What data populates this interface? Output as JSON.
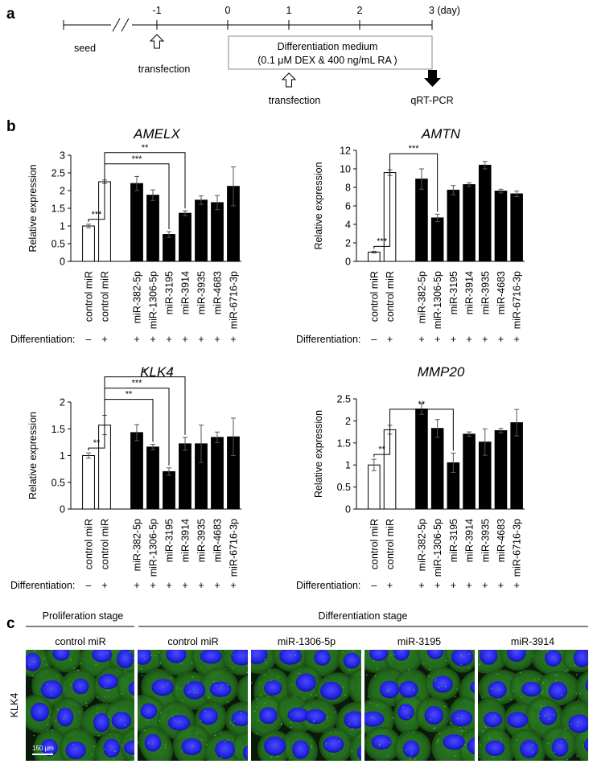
{
  "panel_a": {
    "label": "a",
    "ticks": [
      "-1",
      "0",
      "1",
      "2",
      "3 (day)"
    ],
    "seed": "seed",
    "transfection_1": "transfection",
    "transfection_2": "transfection",
    "medium_line1": "Differentiation medium",
    "medium_line2": "(0.1 μM DEX & 400 ng/mL RA )",
    "qrtpcr": "qRT-PCR"
  },
  "panel_b": {
    "label": "b"
  },
  "categories": [
    "control miR",
    "control miR",
    "miR-382-5p",
    "miR-1306-5p",
    "miR-3195",
    "miR-3914",
    "miR-3935",
    "miR-4683",
    "miR-6716-3p"
  ],
  "differentiation": {
    "label": "Differentiation:",
    "signs": [
      "–",
      "+",
      "+",
      "+",
      "+",
      "+",
      "+",
      "+",
      "+"
    ]
  },
  "chart_data": [
    {
      "type": "bar",
      "title": "AMELX",
      "ylabel": "Relative expression",
      "categories": [
        "control miR",
        "control miR",
        "miR-382-5p",
        "miR-1306-5p",
        "miR-3195",
        "miR-3914",
        "miR-3935",
        "miR-4683",
        "miR-6716-3p"
      ],
      "values": [
        1.0,
        2.25,
        2.2,
        1.87,
        0.76,
        1.36,
        1.73,
        1.66,
        2.12
      ],
      "errors": [
        0.05,
        0.05,
        0.2,
        0.15,
        0.08,
        0.07,
        0.12,
        0.2,
        0.55
      ],
      "ylim": [
        0,
        3
      ],
      "yticks": [
        "0",
        "0.5",
        "1",
        "1.5",
        "2",
        "2.5",
        "3"
      ],
      "significance": [
        {
          "from": 0,
          "to": 1,
          "label": "***"
        },
        {
          "from": 1,
          "to": 4,
          "label": "***"
        },
        {
          "from": 1,
          "to": 5,
          "label": "**"
        }
      ]
    },
    {
      "type": "bar",
      "title": "AMTN",
      "ylabel": "Relative expression",
      "categories": [
        "control miR",
        "control miR",
        "miR-382-5p",
        "miR-1306-5p",
        "miR-3195",
        "miR-3914",
        "miR-3935",
        "miR-4683",
        "miR-6716-3p"
      ],
      "values": [
        1.0,
        9.6,
        8.9,
        4.7,
        7.7,
        8.3,
        10.4,
        7.6,
        7.3
      ],
      "errors": [
        0.1,
        0.3,
        1.1,
        0.4,
        0.5,
        0.2,
        0.4,
        0.2,
        0.3
      ],
      "ylim": [
        0,
        12
      ],
      "yticks": [
        "0",
        "2",
        "4",
        "6",
        "8",
        "10",
        "12"
      ],
      "significance": [
        {
          "from": 0,
          "to": 1,
          "label": "***"
        },
        {
          "from": 1,
          "to": 3,
          "label": "***"
        }
      ]
    },
    {
      "type": "bar",
      "title": "KLK4",
      "ylabel": "Relative expression",
      "categories": [
        "control miR",
        "control miR",
        "miR-382-5p",
        "miR-1306-5p",
        "miR-3195",
        "miR-3914",
        "miR-3935",
        "miR-4683",
        "miR-6716-3p"
      ],
      "values": [
        1.0,
        1.57,
        1.43,
        1.16,
        0.7,
        1.22,
        1.22,
        1.34,
        1.35
      ],
      "errors": [
        0.05,
        0.18,
        0.15,
        0.05,
        0.07,
        0.12,
        0.35,
        0.1,
        0.35
      ],
      "ylim": [
        0,
        2
      ],
      "yticks": [
        "0",
        "0.5",
        "1",
        "1.5",
        "2"
      ],
      "significance": [
        {
          "from": 0,
          "to": 1,
          "label": "**"
        },
        {
          "from": 1,
          "to": 3,
          "label": "**"
        },
        {
          "from": 1,
          "to": 4,
          "label": "***"
        },
        {
          "from": 1,
          "to": 5,
          "label": "*"
        }
      ]
    },
    {
      "type": "bar",
      "title": "MMP20",
      "ylabel": "Relative expression",
      "categories": [
        "control miR",
        "control miR",
        "miR-382-5p",
        "miR-1306-5p",
        "miR-3195",
        "miR-3914",
        "miR-3935",
        "miR-4683",
        "miR-6716-3p"
      ],
      "values": [
        1.0,
        1.8,
        2.27,
        1.83,
        1.05,
        1.7,
        1.52,
        1.78,
        1.96
      ],
      "errors": [
        0.13,
        0.1,
        0.12,
        0.2,
        0.22,
        0.05,
        0.3,
        0.05,
        0.3
      ],
      "ylim": [
        0,
        2.5
      ],
      "yticks": [
        "0",
        "0.5",
        "1",
        "1.5",
        "2",
        "2.5"
      ],
      "significance": [
        {
          "from": 0,
          "to": 1,
          "label": "**"
        },
        {
          "from": 1,
          "to": 4,
          "label": "**"
        }
      ]
    }
  ],
  "panel_c": {
    "label": "c",
    "proliferation_stage": "Proliferation stage",
    "differentiation_stage": "Differentiation stage",
    "row_label": "KLK4",
    "images": [
      "control miR",
      "control miR",
      "miR-1306-5p",
      "miR-3195",
      "miR-3914"
    ],
    "scale_bar": "150 μm",
    "colors": {
      "background": "#0a1a08",
      "cytoplasm": "#2e8c2a",
      "nucleus": "#2020e0"
    }
  }
}
